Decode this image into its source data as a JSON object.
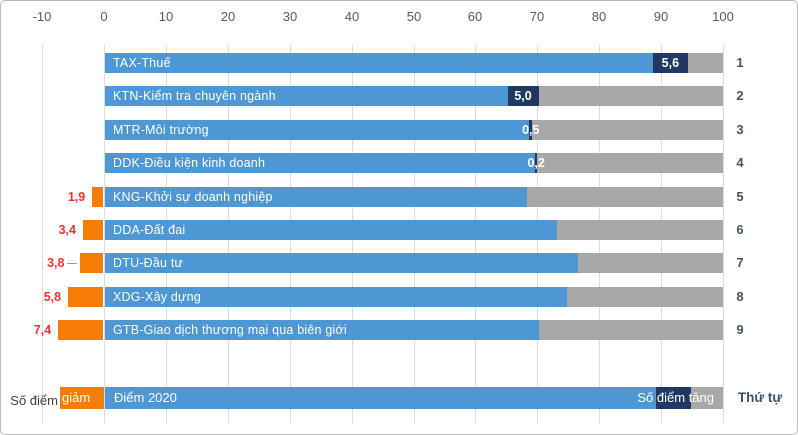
{
  "colors": {
    "score_blue": "#4d97d4",
    "increase_navy": "#1f3864",
    "remainder_gray": "#a8a8a8",
    "decrease_orange": "#f57d05",
    "decrease_value_red": "#ff2e2e",
    "axis_text": "#595959",
    "rank_text": "#44546a",
    "gridline": "#dcdcdc"
  },
  "chart_data": {
    "type": "bar",
    "orientation": "horizontal-stacked",
    "title": "",
    "axis": {
      "position": "top",
      "min": -10,
      "max": 100,
      "tick_step": 10,
      "ticks": [
        -10,
        0,
        10,
        20,
        30,
        40,
        50,
        60,
        70,
        80,
        90,
        100
      ]
    },
    "stack_total": 100,
    "rows": [
      {
        "rank": "1",
        "label": "TAX-Thuế",
        "diem_2020": 88.7,
        "tang": 5.6,
        "tang_label": "5,6",
        "giam": null,
        "giam_label": null
      },
      {
        "rank": "2",
        "label": "KTN-Kiểm tra chuyên ngành",
        "diem_2020": 65.2,
        "tang": 5.0,
        "tang_label": "5,0",
        "giam": null,
        "giam_label": null
      },
      {
        "rank": "3",
        "label": "MTR-Môi trường",
        "diem_2020": 68.7,
        "tang": 0.5,
        "tang_label": "0,5",
        "giam": null,
        "giam_label": null
      },
      {
        "rank": "4",
        "label": "DDK-Điều kiện kinh doanh",
        "diem_2020": 69.7,
        "tang": 0.2,
        "tang_label": "0,2",
        "giam": null,
        "giam_label": null
      },
      {
        "rank": "5",
        "label": "KNG-Khởi sự doanh nghiệp",
        "diem_2020": 68.4,
        "tang": null,
        "tang_label": null,
        "giam": 1.9,
        "giam_label": "1,9"
      },
      {
        "rank": "6",
        "label": "DDA-Đất đai",
        "diem_2020": 73.2,
        "tang": null,
        "tang_label": null,
        "giam": 3.4,
        "giam_label": "3,4"
      },
      {
        "rank": "7",
        "label": "DTU-Đầu tư",
        "diem_2020": 76.5,
        "tang": null,
        "tang_label": null,
        "giam": 3.8,
        "giam_label": "3,8",
        "leader_line": true
      },
      {
        "rank": "8",
        "label": "XDG-Xây dựng",
        "diem_2020": 74.8,
        "tang": null,
        "tang_label": null,
        "giam": 5.8,
        "giam_label": "5,8"
      },
      {
        "rank": "9",
        "label": "GTB-Giao dịch thương mại qua biên giới",
        "diem_2020": 70.2,
        "tang": null,
        "tang_label": null,
        "giam": 7.4,
        "giam_label": "7,4"
      }
    ],
    "legend": {
      "decrease_prefix": "Số điểm",
      "decrease_word": "giảm",
      "score_label": "Điểm 2020",
      "increase_label": "Số điểm tăng",
      "rank_header": "Thứ tự"
    }
  }
}
